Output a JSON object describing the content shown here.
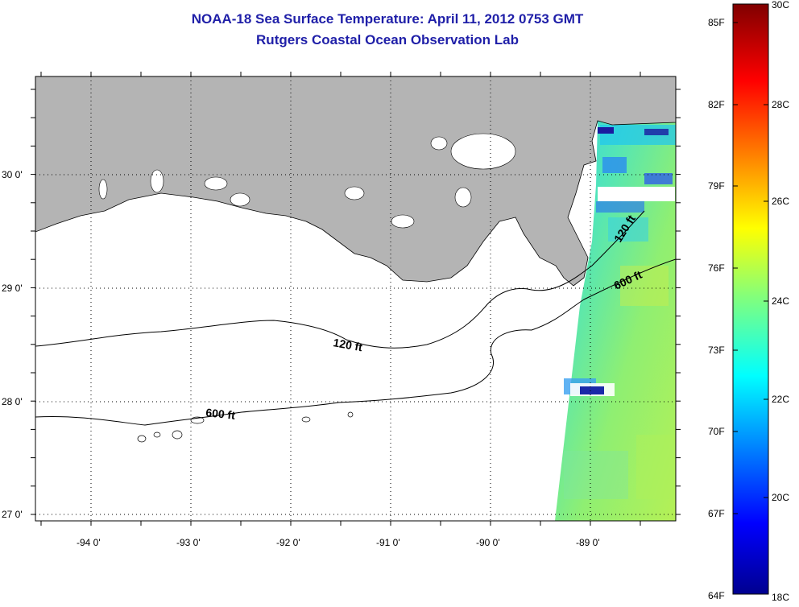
{
  "header": {
    "title": "NOAA-18 Sea Surface Temperature:  April 11, 2012 0753 GMT",
    "subtitle": "Rutgers Coastal Ocean Observation Lab"
  },
  "map": {
    "lat_ticks": [
      "30 0'",
      "29 0'",
      "28 0'",
      "27 0'"
    ],
    "lon_ticks": [
      "-94 0'",
      "-93 0'",
      "-92 0'",
      "-91 0'",
      "-90 0'",
      "-89 0'"
    ],
    "contour_labels": [
      "120 ft",
      "600 ft",
      "120 ft",
      "600 ft"
    ],
    "land_color": "#b4b4b4",
    "grid": true
  },
  "colorbar": {
    "fahrenheit": [
      "85F",
      "82F",
      "79F",
      "76F",
      "73F",
      "70F",
      "67F",
      "64F"
    ],
    "celsius": [
      "30C",
      "28C",
      "26C",
      "24C",
      "22C",
      "20C",
      "18C"
    ],
    "colormap": "jet",
    "range_c": [
      18,
      30
    ]
  }
}
